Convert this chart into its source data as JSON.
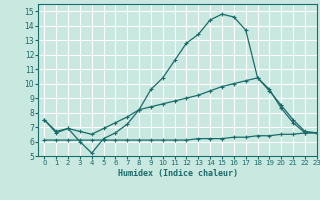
{
  "title": "",
  "xlabel": "Humidex (Indice chaleur)",
  "xlim": [
    -0.5,
    23
  ],
  "ylim": [
    5,
    15.5
  ],
  "xticks": [
    0,
    1,
    2,
    3,
    4,
    5,
    6,
    7,
    8,
    9,
    10,
    11,
    12,
    13,
    14,
    15,
    16,
    17,
    18,
    19,
    20,
    21,
    22,
    23
  ],
  "yticks": [
    5,
    6,
    7,
    8,
    9,
    10,
    11,
    12,
    13,
    14,
    15
  ],
  "bg_color": "#c8e8e0",
  "grid_color": "#ffffff",
  "line_color": "#1a6b6b",
  "line1_x": [
    0,
    1,
    2,
    3,
    4,
    5,
    6,
    7,
    8,
    9,
    10,
    11,
    12,
    13,
    14,
    15,
    16,
    17,
    18,
    19,
    20,
    21,
    22,
    23
  ],
  "line1_y": [
    7.5,
    6.6,
    6.9,
    6.0,
    5.2,
    6.2,
    6.6,
    7.2,
    8.2,
    9.6,
    10.4,
    11.6,
    12.8,
    13.4,
    14.4,
    14.8,
    14.6,
    13.7,
    10.4,
    9.6,
    8.3,
    7.3,
    6.6,
    6.6
  ],
  "line2_x": [
    0,
    1,
    2,
    3,
    4,
    5,
    6,
    7,
    8,
    9,
    10,
    11,
    12,
    13,
    14,
    15,
    16,
    17,
    18,
    19,
    20,
    21,
    22,
    23
  ],
  "line2_y": [
    7.5,
    6.7,
    6.9,
    6.7,
    6.5,
    6.9,
    7.3,
    7.7,
    8.2,
    8.4,
    8.6,
    8.8,
    9.0,
    9.2,
    9.5,
    9.8,
    10.0,
    10.2,
    10.4,
    9.5,
    8.5,
    7.5,
    6.7,
    6.6
  ],
  "line3_x": [
    0,
    1,
    2,
    3,
    4,
    5,
    6,
    7,
    8,
    9,
    10,
    11,
    12,
    13,
    14,
    15,
    16,
    17,
    18,
    19,
    20,
    21,
    22,
    23
  ],
  "line3_y": [
    6.1,
    6.1,
    6.1,
    6.1,
    6.1,
    6.1,
    6.1,
    6.1,
    6.1,
    6.1,
    6.1,
    6.1,
    6.1,
    6.2,
    6.2,
    6.2,
    6.3,
    6.3,
    6.4,
    6.4,
    6.5,
    6.5,
    6.6,
    6.6
  ],
  "xlabel_fontsize": 6,
  "tick_fontsize_x": 5,
  "tick_fontsize_y": 5.5
}
